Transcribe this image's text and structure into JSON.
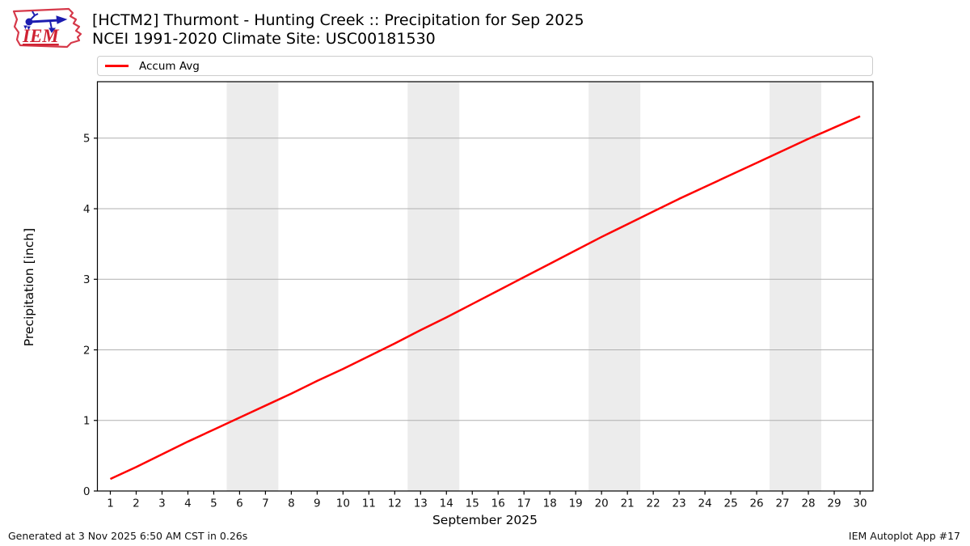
{
  "header": {
    "title_line1": "[HCTM2] Thurmont - Hunting Creek :: Precipitation for Sep 2025",
    "title_line2": "NCEI 1991-2020 Climate Site: USC00181530",
    "logo_text": "IEM"
  },
  "legend": {
    "items": [
      {
        "label": "Accum Avg",
        "color": "#ff0000"
      }
    ]
  },
  "footer": {
    "generated": "Generated at 3 Nov 2025 6:50 AM CST in 0.26s",
    "app": "IEM Autoplot App #17"
  },
  "chart_data": {
    "type": "line",
    "title": "[HCTM2] Thurmont - Hunting Creek :: Precipitation for Sep 2025",
    "subtitle": "NCEI 1991-2020 Climate Site: USC00181530",
    "xlabel": "September 2025",
    "ylabel": "Precipitation [inch]",
    "xlim": [
      0.5,
      30.5
    ],
    "ylim": [
      0,
      5.8
    ],
    "xticks": [
      1,
      2,
      3,
      4,
      5,
      6,
      7,
      8,
      9,
      10,
      11,
      12,
      13,
      14,
      15,
      16,
      17,
      18,
      19,
      20,
      21,
      22,
      23,
      24,
      25,
      26,
      27,
      28,
      29,
      30
    ],
    "yticks": [
      0,
      1,
      2,
      3,
      4,
      5
    ],
    "grid": "horizontal",
    "grid_color": "#b0b0b0",
    "band_color": "#ececec",
    "spine_color": "#000000",
    "legend_position": "top",
    "weekend_bands": [
      [
        5.5,
        7.5
      ],
      [
        12.5,
        14.5
      ],
      [
        19.5,
        21.5
      ],
      [
        26.5,
        28.5
      ]
    ],
    "x": [
      1,
      2,
      3,
      4,
      5,
      6,
      7,
      8,
      9,
      10,
      11,
      12,
      13,
      14,
      15,
      16,
      17,
      18,
      19,
      20,
      21,
      22,
      23,
      24,
      25,
      26,
      27,
      28,
      29,
      30
    ],
    "series": [
      {
        "name": "Accum Avg",
        "color": "#ff0000",
        "values": [
          0.17,
          0.34,
          0.52,
          0.7,
          0.87,
          1.04,
          1.21,
          1.38,
          1.56,
          1.73,
          1.91,
          2.09,
          2.28,
          2.46,
          2.65,
          2.84,
          3.03,
          3.22,
          3.41,
          3.6,
          3.78,
          3.96,
          4.14,
          4.31,
          4.48,
          4.65,
          4.82,
          4.99,
          5.15,
          5.31
        ]
      }
    ]
  }
}
